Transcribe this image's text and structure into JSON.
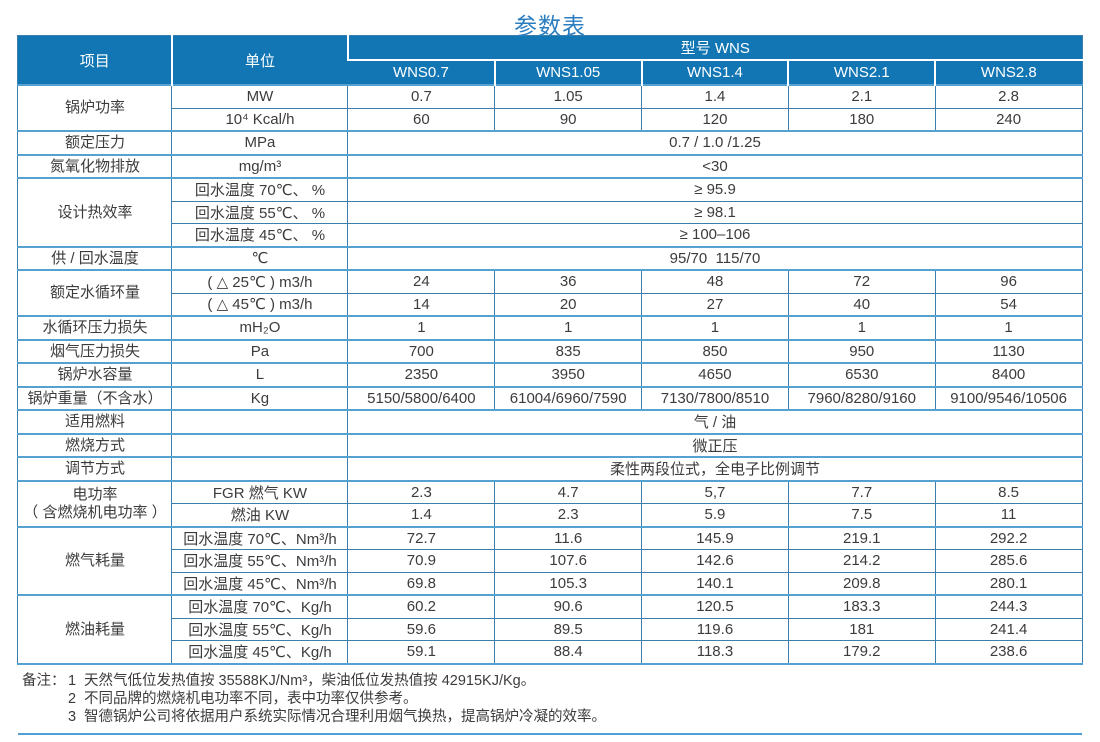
{
  "title": "参数表",
  "table": {
    "header": {
      "item_label": "项目",
      "unit_label": "单位",
      "model_group_label": "型号 WNS",
      "models": [
        "WNS0.7",
        "WNS1.05",
        "WNS1.4",
        "WNS2.1",
        "WNS2.8"
      ]
    },
    "rows": [
      {
        "item": "锅炉功率",
        "item_rowspan": 2,
        "unit": "MW",
        "values": [
          "0.7",
          "1.05",
          "1.4",
          "2.1",
          "2.8"
        ],
        "group_start": true
      },
      {
        "unit": "10⁴ Kcal/h",
        "values": [
          "60",
          "90",
          "120",
          "180",
          "240"
        ]
      },
      {
        "item": "额定压力",
        "unit": "MPa",
        "span": "0.7 / 1.0 /1.25",
        "group_start": true
      },
      {
        "item": "氮氧化物排放",
        "unit": "mg/m³",
        "span": "<30",
        "group_start": true
      },
      {
        "item": "设计热效率",
        "item_rowspan": 3,
        "unit": "回水温度 70℃、 %",
        "span": "≥ 95.9",
        "group_start": true
      },
      {
        "unit": "回水温度 55℃、 %",
        "span": "≥ 98.1"
      },
      {
        "unit": "回水温度 45℃、 %",
        "span": "≥ 100–106"
      },
      {
        "item": "供 / 回水温度",
        "unit": "℃",
        "span": "95/70  115/70",
        "group_start": true
      },
      {
        "item": "额定水循环量",
        "item_rowspan": 2,
        "unit": "( △ 25℃ ) m3/h",
        "values": [
          "24",
          "36",
          "48",
          "72",
          "96"
        ],
        "group_start": true
      },
      {
        "unit": "( △ 45℃ ) m3/h",
        "values": [
          "14",
          "20",
          "27",
          "40",
          "54"
        ]
      },
      {
        "item": "水循环压力损失",
        "unit": "mH₂O",
        "values": [
          "1",
          "1",
          "1",
          "1",
          "1"
        ],
        "group_start": true
      },
      {
        "item": "烟气压力损失",
        "unit": "Pa",
        "values": [
          "700",
          "835",
          "850",
          "950",
          "1130"
        ],
        "group_start": true
      },
      {
        "item": "锅炉水容量",
        "unit": "L",
        "values": [
          "2350",
          "3950",
          "4650",
          "6530",
          "8400"
        ],
        "group_start": true
      },
      {
        "item": "锅炉重量（不含水）",
        "unit": "Kg",
        "values": [
          "5150/5800/6400",
          "61004/6960/7590",
          "7130/7800/8510",
          "7960/8280/9160",
          "9100/9546/10506"
        ],
        "group_start": true
      },
      {
        "item": "适用燃料",
        "unit": "",
        "span": "气 / 油",
        "group_start": true
      },
      {
        "item": "燃烧方式",
        "unit": "",
        "span": "微正压",
        "group_start": true
      },
      {
        "item": "调节方式",
        "unit": "",
        "span": "柔性两段位式，全电子比例调节",
        "group_start": true
      },
      {
        "item": "电功率\n（ 含燃烧机电功率 ）",
        "item_rowspan": 2,
        "unit": "FGR 燃气 KW",
        "values": [
          "2.3",
          "4.7",
          "5,7",
          "7.7",
          "8.5"
        ],
        "group_start": true
      },
      {
        "unit": "燃油 KW",
        "values": [
          "1.4",
          "2.3",
          "5.9",
          "7.5",
          "11"
        ]
      },
      {
        "item": "燃气耗量",
        "item_rowspan": 3,
        "unit": "回水温度 70℃、Nm³/h",
        "values": [
          "72.7",
          "11.6",
          "145.9",
          "219.1",
          "292.2"
        ],
        "group_start": true
      },
      {
        "unit": "回水温度 55℃、Nm³/h",
        "values": [
          "70.9",
          "107.6",
          "142.6",
          "214.2",
          "285.6"
        ]
      },
      {
        "unit": "回水温度 45℃、Nm³/h",
        "values": [
          "69.8",
          "105.3",
          "140.1",
          "209.8",
          "280.1"
        ]
      },
      {
        "item": "燃油耗量",
        "item_rowspan": 3,
        "unit": "回水温度 70℃、Kg/h",
        "values": [
          "60.2",
          "90.6",
          "120.5",
          "183.3",
          "244.3"
        ],
        "group_start": true
      },
      {
        "unit": "回水温度 55℃、Kg/h",
        "values": [
          "59.6",
          "89.5",
          "119.6",
          "181",
          "241.4"
        ]
      },
      {
        "unit": "回水温度 45℃、Kg/h",
        "values": [
          "59.1",
          "88.4",
          "118.3",
          "179.2",
          "238.6"
        ]
      }
    ]
  },
  "notes": {
    "prefix": "备注：",
    "items": [
      {
        "num": "1",
        "text": "天然气低位发热值按 35588KJ/Nm³，柴油低位发热值按 42915KJ/Kg。"
      },
      {
        "num": "2",
        "text": "不同品牌的燃烧机电功率不同，表中功率仅供参考。"
      },
      {
        "num": "3",
        "text": "智德锅炉公司将依据用户系统实际情况合理利用烟气换热，提高锅炉冷凝的效率。"
      }
    ]
  },
  "colors": {
    "header_bg": "#1276b4",
    "header_text": "#ffffff",
    "title_text": "#2b7dc0",
    "thin_border": "#3e7eaa",
    "thick_border": "#55a1d2",
    "body_text": "#3c3c3c"
  }
}
